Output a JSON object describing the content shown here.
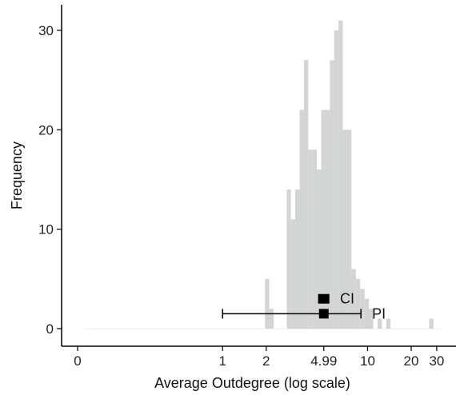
{
  "chart_data": {
    "type": "bar",
    "subtype": "histogram",
    "xlabel": "Average Outdegree (log scale)",
    "ylabel": "Frequency",
    "x_scale": "log",
    "xlim": [
      0.1,
      32
    ],
    "ylim": [
      0,
      32
    ],
    "grid": false,
    "bar_color": "#d3d5d4",
    "x_ticks": [
      {
        "value": 0.1,
        "label": "0"
      },
      {
        "value": 1,
        "label": "1"
      },
      {
        "value": 2,
        "label": "2"
      },
      {
        "value": 4.99,
        "label": "4.99"
      },
      {
        "value": 10,
        "label": "10"
      },
      {
        "value": 20,
        "label": "20"
      },
      {
        "value": 30,
        "label": "30"
      }
    ],
    "y_ticks": [
      {
        "value": 0,
        "label": "0"
      },
      {
        "value": 10,
        "label": "10"
      },
      {
        "value": 20,
        "label": "20"
      },
      {
        "value": 30,
        "label": "30"
      }
    ],
    "bins": [
      {
        "x0": 0.1,
        "x1": 1.96,
        "count": 0
      },
      {
        "x0": 1.96,
        "x1": 2.1,
        "count": 5
      },
      {
        "x0": 2.1,
        "x1": 2.25,
        "count": 2
      },
      {
        "x0": 2.25,
        "x1": 2.77,
        "count": 0
      },
      {
        "x0": 2.77,
        "x1": 2.96,
        "count": 14
      },
      {
        "x0": 2.96,
        "x1": 3.17,
        "count": 11
      },
      {
        "x0": 3.17,
        "x1": 3.4,
        "count": 14
      },
      {
        "x0": 3.4,
        "x1": 3.64,
        "count": 22
      },
      {
        "x0": 3.64,
        "x1": 3.9,
        "count": 27
      },
      {
        "x0": 3.9,
        "x1": 4.18,
        "count": 18
      },
      {
        "x0": 4.18,
        "x1": 4.47,
        "count": 18
      },
      {
        "x0": 4.47,
        "x1": 4.79,
        "count": 16
      },
      {
        "x0": 4.79,
        "x1": 5.13,
        "count": 22
      },
      {
        "x0": 5.13,
        "x1": 5.5,
        "count": 22
      },
      {
        "x0": 5.5,
        "x1": 5.89,
        "count": 27
      },
      {
        "x0": 5.89,
        "x1": 6.3,
        "count": 30
      },
      {
        "x0": 6.3,
        "x1": 6.75,
        "count": 31
      },
      {
        "x0": 6.75,
        "x1": 7.24,
        "count": 20
      },
      {
        "x0": 7.24,
        "x1": 7.75,
        "count": 20
      },
      {
        "x0": 7.75,
        "x1": 8.3,
        "count": 6
      },
      {
        "x0": 8.3,
        "x1": 8.89,
        "count": 5
      },
      {
        "x0": 8.89,
        "x1": 9.53,
        "count": 4
      },
      {
        "x0": 9.53,
        "x1": 10.2,
        "count": 3
      },
      {
        "x0": 10.2,
        "x1": 10.94,
        "count": 2
      },
      {
        "x0": 10.94,
        "x1": 11.72,
        "count": 0
      },
      {
        "x0": 11.72,
        "x1": 12.55,
        "count": 1
      },
      {
        "x0": 12.55,
        "x1": 13.45,
        "count": 0
      },
      {
        "x0": 13.45,
        "x1": 14.41,
        "count": 1
      },
      {
        "x0": 14.41,
        "x1": 26.6,
        "count": 0
      },
      {
        "x0": 26.6,
        "x1": 28.5,
        "count": 1
      },
      {
        "x0": 28.5,
        "x1": 32,
        "count": 0
      }
    ],
    "intervals": [
      {
        "label": "CI",
        "center": 4.99,
        "low": 4.6,
        "high": 5.4,
        "y": 3
      },
      {
        "label": "PI",
        "center": 4.99,
        "low": 1,
        "high": 9,
        "y": 1.5
      }
    ]
  }
}
